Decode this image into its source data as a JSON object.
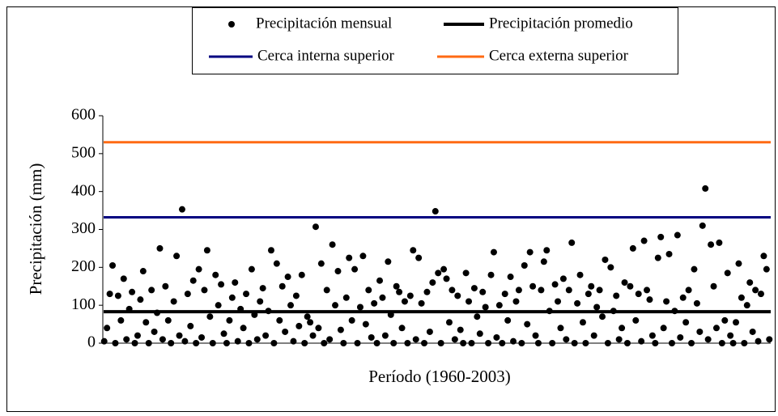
{
  "chart_data": {
    "type": "scatter",
    "x_label": "Período (1960-2003)",
    "y_label": "Precipitación (mm)",
    "ylim": [
      0,
      600
    ],
    "yticks": [
      0,
      100,
      200,
      300,
      400,
      500,
      600
    ],
    "series": [
      {
        "name": "Precipitación mensual",
        "color": "#000000",
        "values": [
          5,
          40,
          130,
          205,
          0,
          125,
          60,
          170,
          10,
          90,
          135,
          0,
          20,
          115,
          190,
          55,
          0,
          140,
          30,
          80,
          250,
          10,
          150,
          60,
          0,
          110,
          230,
          20,
          353,
          5,
          130,
          45,
          165,
          0,
          195,
          15,
          140,
          245,
          70,
          0,
          180,
          100,
          155,
          25,
          0,
          60,
          120,
          160,
          5,
          90,
          40,
          130,
          0,
          195,
          75,
          10,
          110,
          145,
          20,
          85,
          245,
          0,
          210,
          60,
          150,
          30,
          175,
          100,
          5,
          125,
          45,
          180,
          0,
          70,
          55,
          20,
          307,
          40,
          210,
          0,
          140,
          10,
          260,
          100,
          190,
          35,
          0,
          120,
          225,
          60,
          195,
          0,
          95,
          230,
          50,
          140,
          15,
          105,
          0,
          165,
          120,
          20,
          215,
          75,
          0,
          150,
          135,
          40,
          110,
          0,
          125,
          245,
          10,
          225,
          105,
          0,
          135,
          30,
          160,
          348,
          185,
          0,
          195,
          170,
          55,
          140,
          10,
          125,
          35,
          0,
          185,
          110,
          0,
          145,
          70,
          25,
          135,
          95,
          0,
          180,
          240,
          15,
          100,
          0,
          130,
          60,
          175,
          5,
          110,
          140,
          0,
          205,
          50,
          240,
          150,
          20,
          0,
          140,
          215,
          245,
          85,
          0,
          155,
          110,
          40,
          170,
          10,
          140,
          265,
          0,
          105,
          180,
          55,
          0,
          130,
          150,
          20,
          95,
          140,
          70,
          220,
          0,
          200,
          85,
          125,
          10,
          40,
          160,
          0,
          150,
          250,
          60,
          130,
          5,
          270,
          140,
          115,
          20,
          0,
          225,
          280,
          40,
          110,
          235,
          0,
          85,
          285,
          15,
          120,
          55,
          140,
          0,
          195,
          105,
          30,
          310,
          408,
          10,
          260,
          150,
          40,
          265,
          0,
          60,
          185,
          20,
          0,
          55,
          210,
          120,
          0,
          100,
          160,
          30,
          140,
          5,
          130,
          230,
          195,
          10
        ]
      }
    ],
    "lines": [
      {
        "name": "Precipitación promedio",
        "color": "#000000",
        "value": 83
      },
      {
        "name": "Cerca interna superior",
        "color": "#000080",
        "value": 332
      },
      {
        "name": "Cerca externa superior",
        "color": "#ff6a13",
        "value": 530
      }
    ]
  }
}
